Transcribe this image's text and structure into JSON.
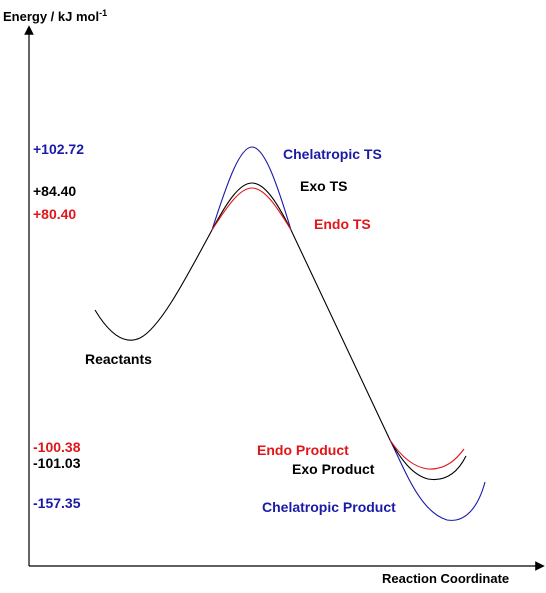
{
  "axes": {
    "y_title": "Energy / kJ mol",
    "y_title_superscript": "-1",
    "x_title": "Reaction Coordinate"
  },
  "colors": {
    "chelatropic": "#1a1aa8",
    "exo": "#000000",
    "endo": "#e0161b",
    "reactants": "#000000"
  },
  "energy_values": [
    {
      "id": "chelatropic-ts",
      "value": "+102.72",
      "color": "#1a1aa8"
    },
    {
      "id": "exo-ts",
      "value": "+84.40",
      "color": "#000000"
    },
    {
      "id": "endo-ts",
      "value": "+80.40",
      "color": "#e0161b"
    },
    {
      "id": "endo-product",
      "value": "-100.38",
      "color": "#e0161b"
    },
    {
      "id": "exo-product",
      "value": "-101.03",
      "color": "#000000"
    },
    {
      "id": "chelatropic-product",
      "value": "-157.35",
      "color": "#1a1aa8"
    }
  ],
  "state_labels": [
    {
      "id": "chelatropic-ts",
      "text": "Chelatropic TS",
      "color": "#1a1aa8"
    },
    {
      "id": "exo-ts",
      "text": "Exo TS",
      "color": "#000000"
    },
    {
      "id": "endo-ts",
      "text": "Endo TS",
      "color": "#e0161b"
    },
    {
      "id": "reactants",
      "text": "Reactants",
      "color": "#000000"
    },
    {
      "id": "endo-product",
      "text": "Endo Product",
      "color": "#e0161b"
    },
    {
      "id": "exo-product",
      "text": "Exo Product",
      "color": "#000000"
    },
    {
      "id": "chelatropic-product",
      "text": "Chelatropic Product",
      "color": "#1a1aa8"
    }
  ]
}
